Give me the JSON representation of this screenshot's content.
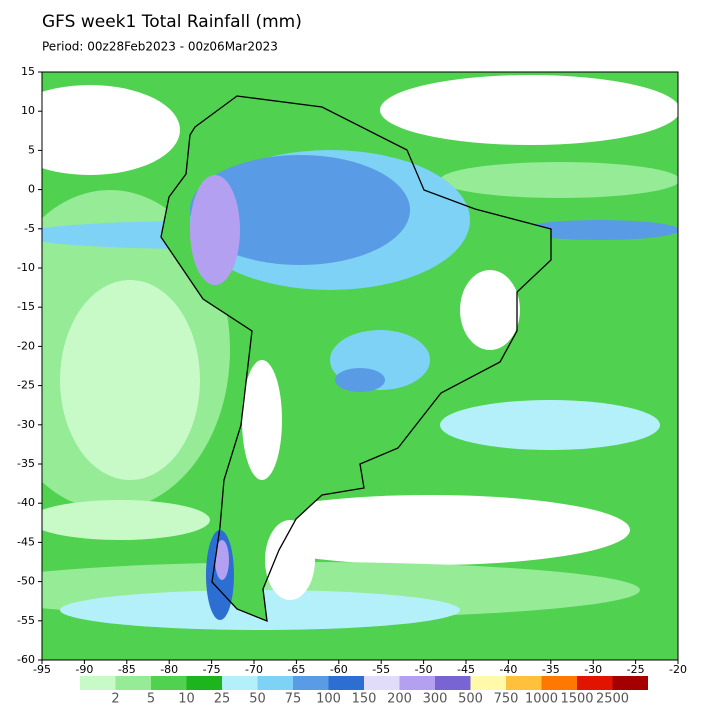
{
  "title": "GFS week1 Total Rainfall (mm)",
  "subtitle": "Period: 00z28Feb2023 - 00z06Mar2023",
  "map": {
    "xlim": [
      -95,
      -20
    ],
    "ylim": [
      -60,
      15
    ],
    "xticks": [
      -95,
      -90,
      -85,
      -80,
      -75,
      -70,
      -65,
      -60,
      -55,
      -50,
      -45,
      -40,
      -35,
      -30,
      -25,
      -20
    ],
    "yticks": [
      15,
      10,
      5,
      0,
      -5,
      -10,
      -15,
      -20,
      -25,
      -30,
      -35,
      -40,
      -45,
      -50,
      -55,
      -60
    ]
  },
  "colorbar": {
    "levels": [
      2,
      5,
      10,
      25,
      50,
      75,
      100,
      150,
      200,
      300,
      500,
      750,
      1000,
      1500,
      2500
    ],
    "colors": [
      "#c8fac8",
      "#96eb96",
      "#50d250",
      "#1eb41e",
      "#b4f0fa",
      "#7dd2f5",
      "#5a9be6",
      "#2d6ed2",
      "#e1dcfa",
      "#b4a0f0",
      "#7864d2",
      "#fffaaa",
      "#ffc03c",
      "#ff7800",
      "#e11400",
      "#a50000"
    ]
  }
}
